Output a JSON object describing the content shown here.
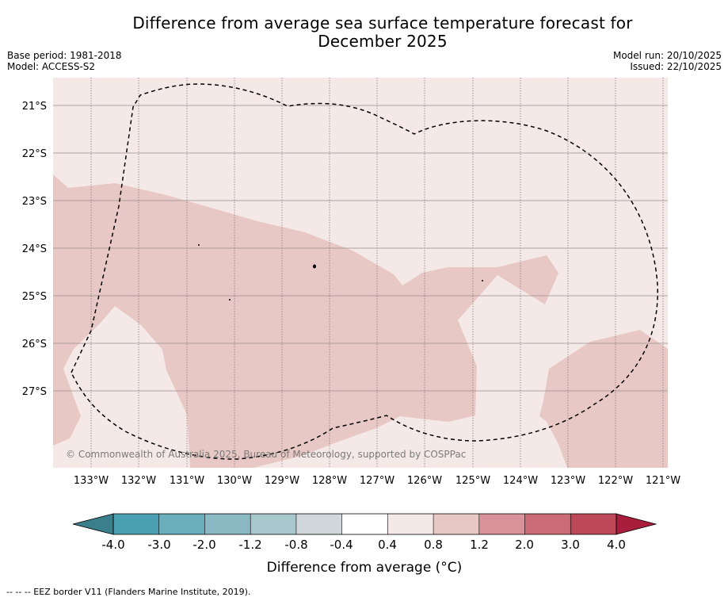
{
  "title_line1": "Difference from average sea surface temperature forecast for",
  "title_line2": "December 2025",
  "meta_left": [
    "Base period: 1981-2018",
    "Model: ACCESS-S2"
  ],
  "meta_right": [
    "Model run: 20/10/2025",
    "Issued: 22/10/2025"
  ],
  "copyright": "© Commonwealth of Australia 2025, Bureau of Meteorology, supported by COSPPac",
  "footnote": "-- -- -- EEZ border V11 (Flanders Marine Institute, 2019).",
  "map": {
    "lon_labels": [
      "133°W",
      "132°W",
      "131°W",
      "130°W",
      "129°W",
      "128°W",
      "127°W",
      "126°W",
      "125°W",
      "124°W",
      "123°W",
      "122°W",
      "121°W"
    ],
    "lat_labels": [
      "21°S",
      "22°S",
      "23°S",
      "24°S",
      "25°S",
      "26°S",
      "27°S"
    ],
    "lat_line_values": [
      -21,
      -22,
      -23,
      -24,
      -25,
      -26,
      -27
    ],
    "lon_line_values": [
      -133,
      -132,
      -131,
      -130,
      -129,
      -128,
      -127,
      -126,
      -125,
      -124,
      -123,
      -122,
      -121
    ],
    "legend_layers": [
      {
        "range": "0.4 to 0.8",
        "color": "#f5e9e8"
      },
      {
        "range": "0.8 to 1.2",
        "color": "#e8c8c4"
      }
    ]
  },
  "colorbar": {
    "title": "Difference from average (°C)",
    "tick_labels": [
      "-4.0",
      "-3.0",
      "-2.0",
      "-1.2",
      "-0.8",
      "-0.4",
      "0.4",
      "0.8",
      "1.2",
      "2.0",
      "3.0",
      "4.0"
    ],
    "colors": [
      "#4aa0b0",
      "#6aaebb",
      "#8ab9c4",
      "#a9c8cd",
      "#d0d7da",
      "#ffffff",
      "#f5e9e8",
      "#e8c8c4",
      "#d9929a",
      "#ca6b76",
      "#bc4858"
    ],
    "extend_low_color": "#3a7f8b",
    "extend_high_color": "#a91e3c"
  }
}
